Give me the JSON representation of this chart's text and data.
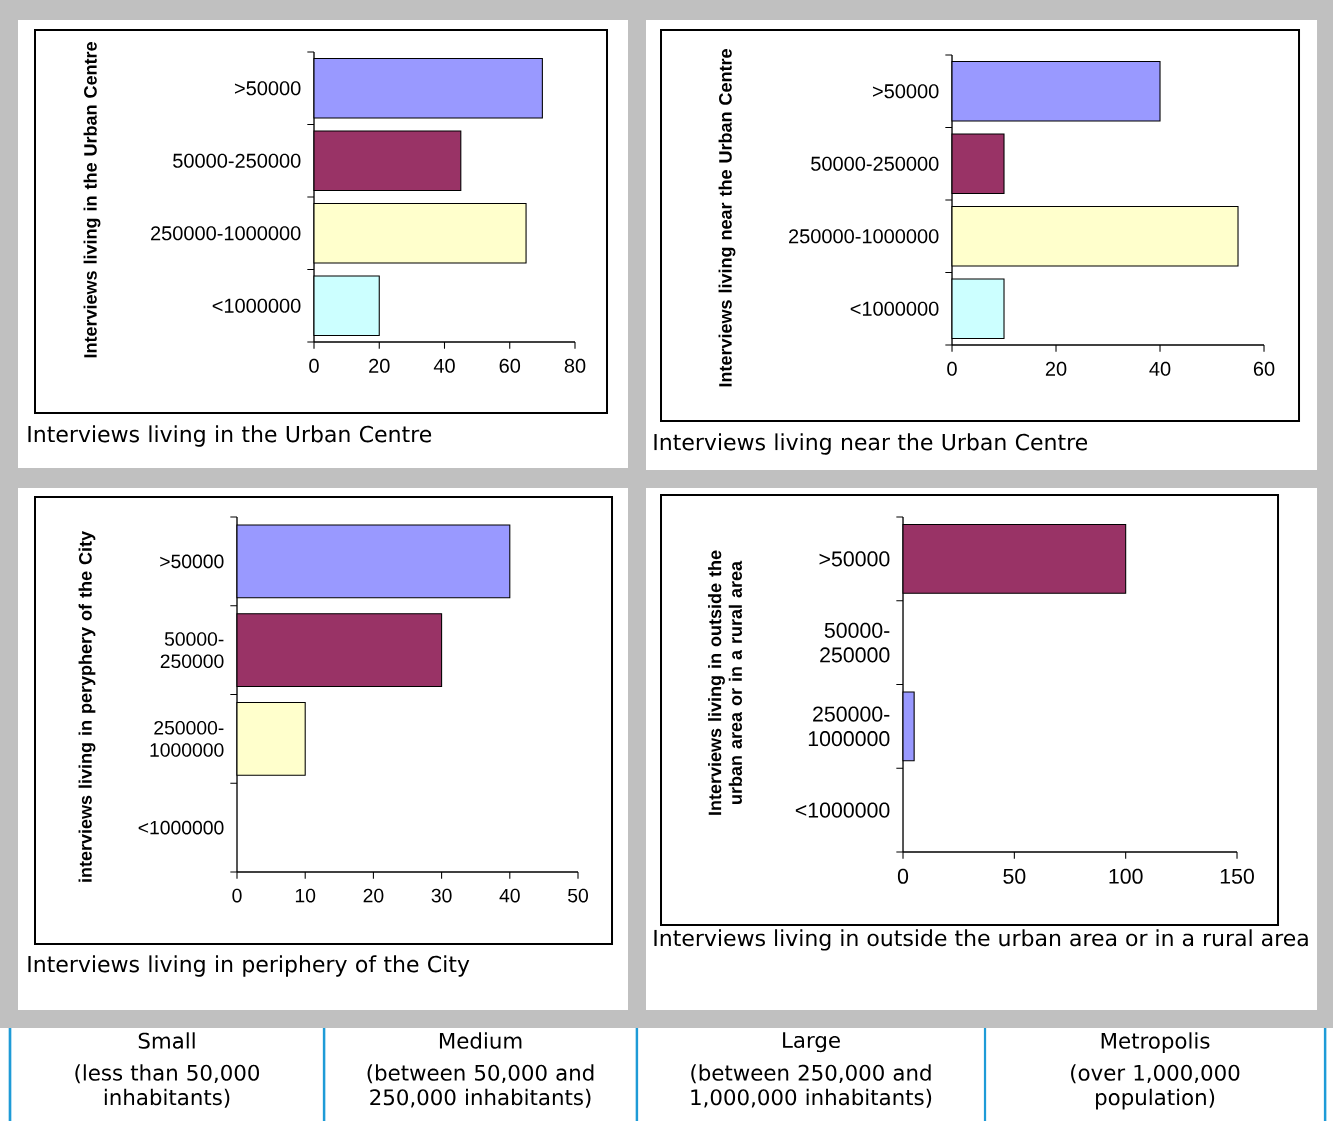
{
  "chart_data": [
    {
      "type": "bar",
      "orientation": "horizontal",
      "title": "Interviews living in the Urban Centre",
      "ylabel": "Interviews living in the Urban Centre",
      "categories": [
        ">50000",
        "50000-250000",
        "250000-1000000",
        "<1000000"
      ],
      "values": [
        70,
        45,
        65,
        20
      ],
      "colors": [
        "#9999ff",
        "#993366",
        "#ffffcc",
        "#ccffff"
      ],
      "xlim": [
        0,
        80
      ],
      "xticks": [
        0,
        20,
        40,
        60,
        80
      ]
    },
    {
      "type": "bar",
      "orientation": "horizontal",
      "title": "Interviews living near the Urban Centre",
      "ylabel": "Interviews living near the Urban Centre",
      "categories": [
        ">50000",
        "50000-250000",
        "250000-1000000",
        "<1000000"
      ],
      "values": [
        40,
        10,
        55,
        10
      ],
      "colors": [
        "#9999ff",
        "#993366",
        "#ffffcc",
        "#ccffff"
      ],
      "xlim": [
        0,
        60
      ],
      "xticks": [
        0,
        20,
        40,
        60
      ]
    },
    {
      "type": "bar",
      "orientation": "horizontal",
      "title": "Interviews living in periphery of the City",
      "ylabel": "interviews living in peryphery of the City",
      "categories": [
        ">50000",
        "50000-250000",
        "250000-1000000",
        "<1000000"
      ],
      "values": [
        40,
        30,
        10,
        null
      ],
      "colors": [
        "#9999ff",
        "#993366",
        "#ffffcc",
        null
      ],
      "xlim": [
        0,
        50
      ],
      "xticks": [
        0,
        10,
        20,
        30,
        40,
        50
      ]
    },
    {
      "type": "bar",
      "orientation": "horizontal",
      "title": "Interviews living in outside the urban area or in a rural area",
      "ylabel": "Interviews living in outside the urban area or in a rural area",
      "categories": [
        ">50000",
        "50000-250000",
        "250000-1000000",
        "<1000000"
      ],
      "values": [
        100,
        null,
        5,
        null
      ],
      "colors": [
        "#993366",
        null,
        "#9999ff",
        null
      ],
      "xlim": [
        0,
        150
      ],
      "xticks": [
        0,
        50,
        100,
        150
      ]
    },
    {
      "type": "other",
      "annotations": [
        "Small",
        "(less than 50,000 inhabitants)",
        "Medium",
        "(between 50,000 and 250,000 inhabitants)",
        "Large",
        "(between 250,000 and 1,000,000 inhabitants)",
        "Metropolis",
        "(over 1,000,000 population)"
      ]
    }
  ]
}
